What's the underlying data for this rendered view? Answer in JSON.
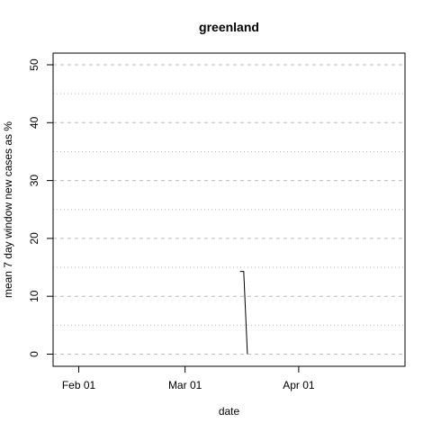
{
  "chart_data": {
    "type": "line",
    "title": "greenland",
    "xlabel": "date",
    "ylabel": "mean  7  day window new cases as %",
    "x_ticks": [
      "2020-02-01",
      "2020-03-01",
      "2020-04-01"
    ],
    "x_tick_labels": [
      "Feb 01",
      "Mar 01",
      "Apr 01"
    ],
    "xlim": [
      "2020-01-25",
      "2020-04-30"
    ],
    "y_ticks": [
      0,
      10,
      20,
      30,
      40,
      50
    ],
    "y_tick_labels": [
      "0",
      "10",
      "20",
      "30",
      "40",
      "50"
    ],
    "ylim": [
      0,
      50
    ],
    "grid": {
      "major_y": [
        0,
        10,
        20,
        30,
        40,
        50
      ],
      "minor_y": [
        5,
        15,
        25,
        35,
        45
      ],
      "major_style": "dashed",
      "minor_style": "dotted",
      "color": "#bbbbbb"
    },
    "series": [
      {
        "color": "#000000",
        "x": [
          "2020-03-16",
          "2020-03-17",
          "2020-03-18"
        ],
        "y": [
          14.3,
          14.3,
          0
        ]
      }
    ]
  }
}
